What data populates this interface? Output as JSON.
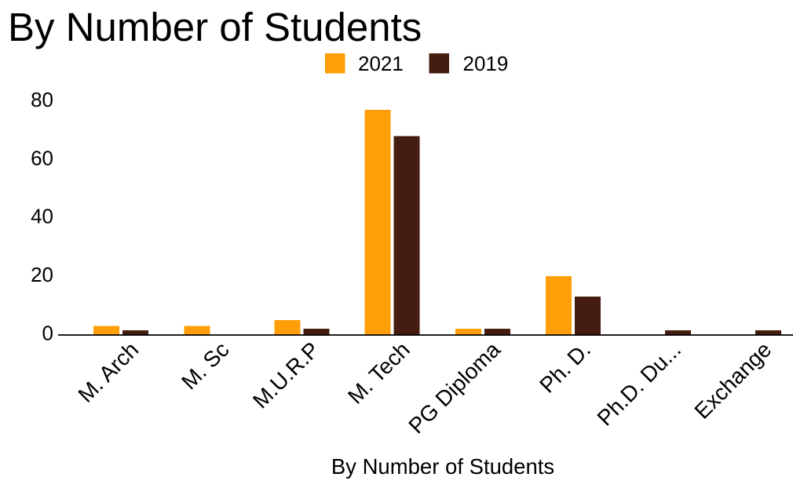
{
  "chart_data": {
    "type": "bar",
    "title": "By Number of Students",
    "xlabel": "By Number of Students",
    "ylabel": "",
    "categories": [
      "M. Arch",
      "M. Sc",
      "M.U.R.P",
      "M. Tech",
      "PG Diploma",
      "Ph. D.",
      "Ph.D. Du...",
      "Exchange"
    ],
    "series": [
      {
        "name": "2021",
        "color": "#FF9E06",
        "values": [
          3,
          3,
          5,
          77,
          2,
          20,
          0,
          0
        ]
      },
      {
        "name": "2019",
        "color": "#441C10",
        "values": [
          1.5,
          0,
          2,
          68,
          2,
          13,
          1.5,
          1.5
        ]
      }
    ],
    "ylim": [
      0,
      80
    ],
    "yticks": [
      0,
      20,
      40,
      60,
      80
    ],
    "grid": false,
    "legend_position": "top",
    "text_color": "#000000",
    "axis_color": "#000000"
  }
}
